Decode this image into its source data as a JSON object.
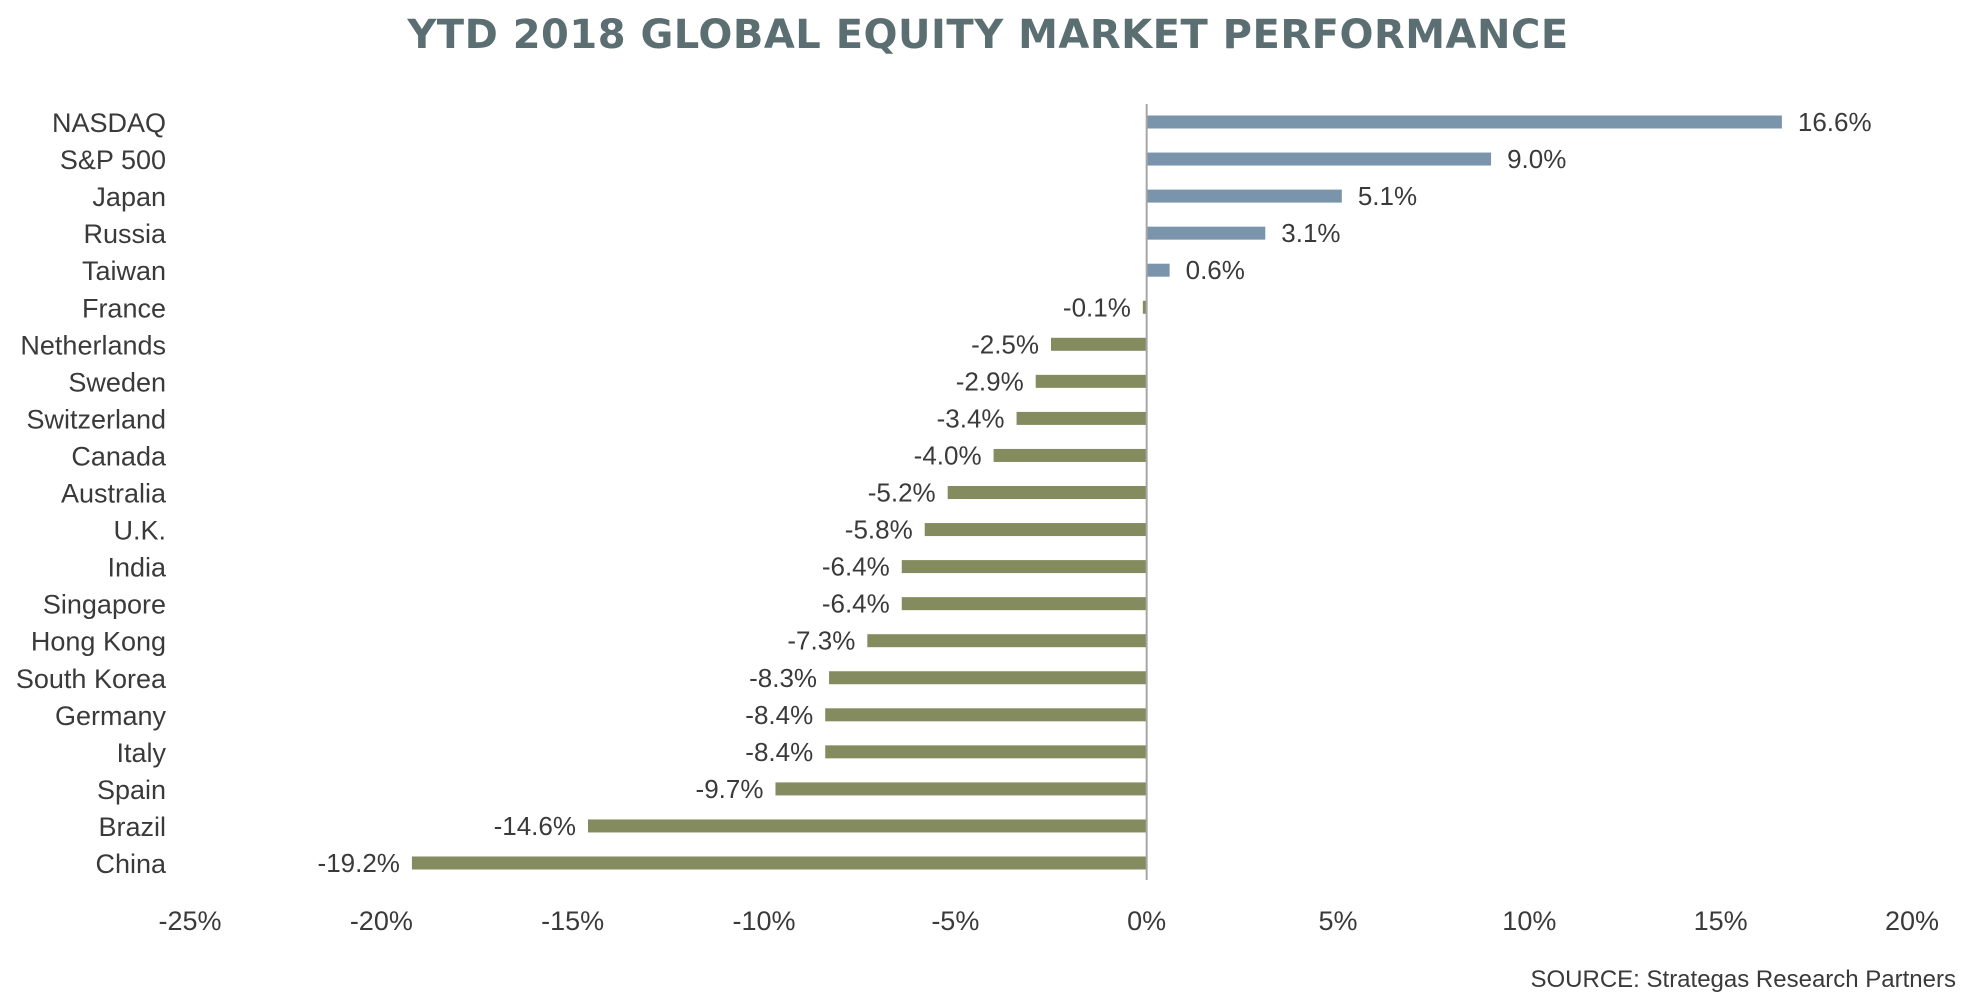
{
  "chart_data": {
    "type": "bar",
    "orientation": "horizontal",
    "title": "YTD 2018 GLOBAL EQUITY MARKET PERFORMANCE",
    "source": "SOURCE: Strategas Research Partners",
    "categories": [
      "NASDAQ",
      "S&P 500",
      "Japan",
      "Russia",
      "Taiwan",
      "France",
      "Netherlands",
      "Sweden",
      "Switzerland",
      "Canada",
      "Australia",
      "U.K.",
      "India",
      "Singapore",
      "Hong Kong",
      "South Korea",
      "Germany",
      "Italy",
      "Spain",
      "Brazil",
      "China"
    ],
    "values": [
      16.6,
      9.0,
      5.1,
      3.1,
      0.6,
      -0.1,
      -2.5,
      -2.9,
      -3.4,
      -4.0,
      -5.2,
      -5.8,
      -6.4,
      -6.4,
      -7.3,
      -8.3,
      -8.4,
      -8.4,
      -9.7,
      -14.6,
      -19.2
    ],
    "value_labels": [
      "16.6%",
      "9.0%",
      "5.1%",
      "3.1%",
      "0.6%",
      "-0.1%",
      "-2.5%",
      "-2.9%",
      "-3.4%",
      "-4.0%",
      "-5.2%",
      "-5.8%",
      "-6.4%",
      "-6.4%",
      "-7.3%",
      "-8.3%",
      "-8.4%",
      "-8.4%",
      "-9.7%",
      "-14.6%",
      "-19.2%"
    ],
    "xlim": [
      -25,
      20
    ],
    "xticks": [
      -25,
      -20,
      -15,
      -10,
      -5,
      0,
      5,
      10,
      15,
      20
    ],
    "xtick_labels": [
      "-25%",
      "-20%",
      "-15%",
      "-10%",
      "-5%",
      "0%",
      "5%",
      "10%",
      "15%",
      "20%"
    ],
    "xlabel": "",
    "ylabel": "",
    "grid": false,
    "legend": "none",
    "colors": {
      "positive": "#7a95ab",
      "negative": "#838b5f",
      "axis": "#a6a6a6",
      "title": "#5b6e72"
    }
  }
}
